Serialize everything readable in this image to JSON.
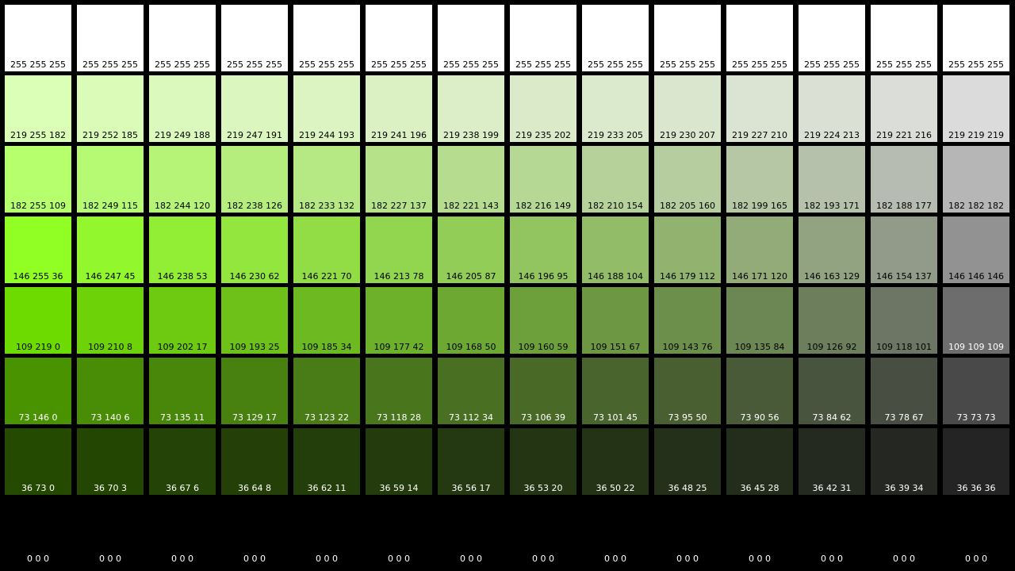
{
  "swatch_rows": [
    [
      "255 255 255",
      "255 255 255",
      "255 255 255",
      "255 255 255",
      "255 255 255",
      "255 255 255",
      "255 255 255",
      "255 255 255",
      "255 255 255",
      "255 255 255",
      "255 255 255",
      "255 255 255",
      "255 255 255",
      "255 255 255"
    ],
    [
      "219 255 182",
      "219 252 185",
      "219 249 188",
      "219 247 191",
      "219 244 193",
      "219 241 196",
      "219 238 199",
      "219 235 202",
      "219 233 205",
      "219 230 207",
      "219 227 210",
      "219 224 213",
      "219 221 216",
      "219 219 219"
    ],
    [
      "182 255 109",
      "182 249 115",
      "182 244 120",
      "182 238 126",
      "182 233 132",
      "182 227 137",
      "182 221 143",
      "182 216 149",
      "182 210 154",
      "182 205 160",
      "182 199 165",
      "182 193 171",
      "182 188 177",
      "182 182 182"
    ],
    [
      "146 255 36",
      "146 247 45",
      "146 238 53",
      "146 230 62",
      "146 221 70",
      "146 213 78",
      "146 205 87",
      "146 196 95",
      "146 188 104",
      "146 179 112",
      "146 171 120",
      "146 163 129",
      "146 154 137",
      "146 146 146"
    ],
    [
      "109 219 0",
      "109 210 8",
      "109 202 17",
      "109 193 25",
      "109 185 34",
      "109 177 42",
      "109 168 50",
      "109 160 59",
      "109 151 67",
      "109 143 76",
      "109 135 84",
      "109 126 92",
      "109 118 101",
      "109 109 109"
    ],
    [
      "73 146 0",
      "73 140 6",
      "73 135 11",
      "73 129 17",
      "73 123 22",
      "73 118 28",
      "73 112 34",
      "73 106 39",
      "73 101 45",
      "73 95 50",
      "73 90 56",
      "73 84 62",
      "73 78 67",
      "73 73 73"
    ],
    [
      "36 73 0",
      "36 70 3",
      "36 67 6",
      "36 64 8",
      "36 62 11",
      "36 59 14",
      "36 56 17",
      "36 53 20",
      "36 50 22",
      "36 48 25",
      "36 45 28",
      "36 42 31",
      "36 39 34",
      "36 36 36"
    ],
    [
      "0 0 0",
      "0 0 0",
      "0 0 0",
      "0 0 0",
      "0 0 0",
      "0 0 0",
      "0 0 0",
      "0 0 0",
      "0 0 0",
      "0 0 0",
      "0 0 0",
      "0 0 0",
      "0 0 0",
      "0 0 0"
    ]
  ]
}
